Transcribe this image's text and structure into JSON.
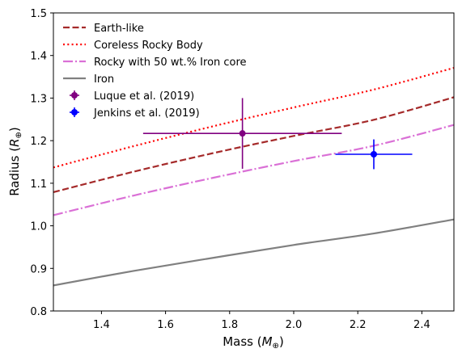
{
  "chart_data": {
    "type": "line",
    "xlabel": "Mass (M⊕)",
    "ylabel": "Radius (R⊕)",
    "xlim": [
      1.25,
      2.5
    ],
    "ylim": [
      0.8,
      1.5
    ],
    "x_ticks": [
      "1.4",
      "1.6",
      "1.8",
      "2.0",
      "2.2",
      "2.4"
    ],
    "y_ticks": [
      "0.8",
      "0.9",
      "1.0",
      "1.1",
      "1.2",
      "1.3",
      "1.4",
      "1.5"
    ],
    "grid": false,
    "legend_position": "top-left",
    "series": [
      {
        "name": "Earth-like",
        "style": "dashed",
        "color": "#a52a2a",
        "x": [
          1.25,
          1.5,
          1.75,
          2.0,
          2.25,
          2.5
        ],
        "y": [
          1.079,
          1.127,
          1.171,
          1.211,
          1.249,
          1.302
        ]
      },
      {
        "name": "Coreless Rocky Body",
        "style": "dotted",
        "color": "#ff0000",
        "x": [
          1.25,
          1.5,
          1.75,
          2.0,
          2.25,
          2.5
        ],
        "y": [
          1.137,
          1.187,
          1.234,
          1.278,
          1.32,
          1.371
        ]
      },
      {
        "name": "Rocky with 50 wt.% Iron core",
        "style": "dashdot",
        "color": "#da70d6",
        "x": [
          1.25,
          1.5,
          1.75,
          2.0,
          2.25,
          2.5
        ],
        "y": [
          1.025,
          1.071,
          1.113,
          1.152,
          1.188,
          1.237
        ]
      },
      {
        "name": "Iron",
        "style": "solid",
        "color": "#808080",
        "x": [
          1.25,
          1.5,
          1.75,
          2.0,
          2.25,
          2.5
        ],
        "y": [
          0.86,
          0.894,
          0.925,
          0.955,
          0.982,
          1.015
        ]
      }
    ],
    "points": [
      {
        "name": "Luque et al. (2019)",
        "color": "#800080",
        "x": 1.84,
        "y": 1.217,
        "xerr": [
          0.31,
          0.31
        ],
        "yerr": [
          0.083,
          0.083
        ]
      },
      {
        "name": "Jenkins et al. (2019)",
        "color": "#0000ff",
        "x": 2.25,
        "y": 1.168,
        "xerr": [
          0.12,
          0.12
        ],
        "yerr": [
          0.035,
          0.035
        ]
      }
    ]
  }
}
